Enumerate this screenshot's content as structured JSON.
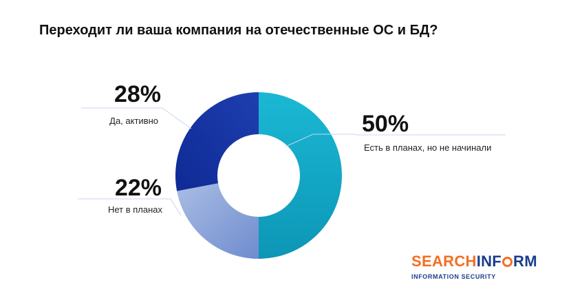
{
  "chart_data": {
    "type": "pie",
    "title": "Переходит ли ваша компания на отечественные ОС и БД?",
    "donut": true,
    "slices": [
      {
        "label": "Есть в планах, но не начинали",
        "value": 50,
        "value_label": "50%",
        "color": "#1ab3cf"
      },
      {
        "label": "Нет в планах",
        "value": 22,
        "value_label": "22%",
        "color": "#8aa3d8"
      },
      {
        "label": "Да, активно",
        "value": 28,
        "value_label": "28%",
        "color": "#1a3aa8"
      }
    ]
  },
  "brand": {
    "part1": "SEARCH",
    "part2": "INF",
    "part3": "RM",
    "tagline": "INFORMATION SECURITY",
    "color_orange": "#f36f21",
    "color_blue": "#1b3c8c"
  }
}
